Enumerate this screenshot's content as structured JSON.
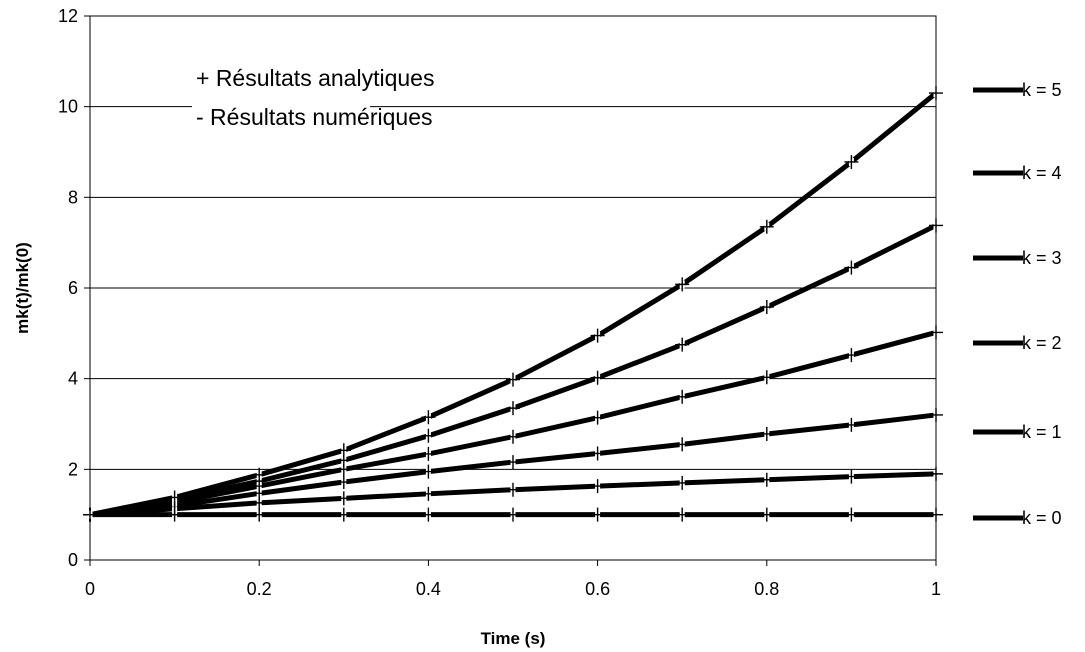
{
  "chart_data": {
    "type": "line",
    "title": "",
    "xlabel": "Time (s)",
    "ylabel": "mk(t)/mk(0)",
    "xlim": [
      0,
      1
    ],
    "ylim": [
      0,
      12
    ],
    "x_ticks": [
      "0",
      "0.2",
      "0.4",
      "0.6",
      "0.8",
      "1"
    ],
    "y_ticks": [
      "0",
      "2",
      "4",
      "6",
      "8",
      "10",
      "12"
    ],
    "grid": "horizontal",
    "legend_position": "right",
    "annotation_lines": [
      "+ Résultats analytiques",
      "-  Résultats numériques"
    ],
    "marker": "+",
    "x": [
      0,
      0.1,
      0.2,
      0.3,
      0.4,
      0.5,
      0.6,
      0.7,
      0.8,
      0.9,
      1
    ],
    "series": [
      {
        "name": "k = 0",
        "values": [
          1.0,
          1.0,
          1.0,
          1.0,
          1.0,
          1.0,
          1.0,
          1.0,
          1.0,
          1.0,
          1.0
        ]
      },
      {
        "name": "k = 1",
        "values": [
          1.0,
          1.13,
          1.26,
          1.36,
          1.46,
          1.55,
          1.63,
          1.7,
          1.77,
          1.84,
          1.9
        ]
      },
      {
        "name": "k = 2",
        "values": [
          1.0,
          1.19,
          1.47,
          1.72,
          1.95,
          2.16,
          2.35,
          2.55,
          2.78,
          2.98,
          3.2
        ]
      },
      {
        "name": "k = 3",
        "values": [
          1.0,
          1.27,
          1.63,
          2.0,
          2.34,
          2.72,
          3.14,
          3.6,
          4.03,
          4.52,
          5.02
        ]
      },
      {
        "name": "k = 4",
        "values": [
          1.0,
          1.33,
          1.74,
          2.2,
          2.74,
          3.35,
          4.02,
          4.75,
          5.58,
          6.45,
          7.38
        ]
      },
      {
        "name": "k = 5",
        "values": [
          1.0,
          1.38,
          1.88,
          2.42,
          3.15,
          3.98,
          4.95,
          6.08,
          7.35,
          8.78,
          10.3
        ]
      }
    ]
  }
}
